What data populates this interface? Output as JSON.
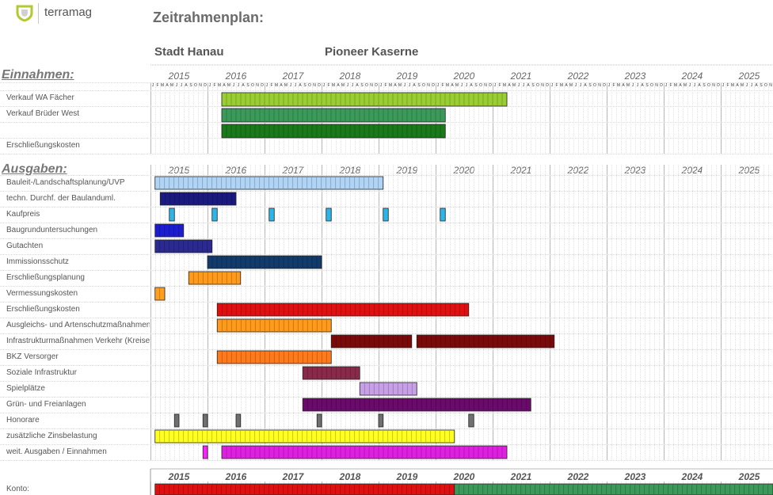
{
  "brand": {
    "name": "terramag"
  },
  "page": {
    "title": "Zeitrahmenplan:",
    "city": "Stadt Hanau",
    "project": "Pioneer Kaserne"
  },
  "timeline": {
    "years": [
      "2015",
      "2016",
      "2017",
      "2018",
      "2019",
      "2020",
      "2021",
      "2022",
      "2023",
      "2024",
      "2025"
    ],
    "month_initials": [
      "J",
      "F",
      "M",
      "A",
      "M",
      "J",
      "J",
      "A",
      "S",
      "O",
      "N",
      "D"
    ]
  },
  "sections": {
    "income_heading": "Einnahmen:",
    "expense_heading": "Ausgaben:",
    "account_label": "Konto:"
  },
  "income_rows": [
    {
      "label": "Verkauf WA Fächer",
      "bars": [
        {
          "start": 2016.25,
          "end": 2021.25,
          "color": "#9acd32"
        }
      ]
    },
    {
      "label": "Verkauf Brüder West",
      "bars": [
        {
          "start": 2016.25,
          "end": 2020.17,
          "color": "#3b9a5a"
        }
      ]
    },
    {
      "label": "",
      "bars": [
        {
          "start": 2016.25,
          "end": 2020.17,
          "color": "#1a7a1a"
        }
      ]
    },
    {
      "label": "Erschließungskosten",
      "bars": []
    }
  ],
  "expense_rows": [
    {
      "label": "Bauleit-/Landschaftsplanung/UVP",
      "bars": [
        {
          "start": 2015.08,
          "end": 2019.08,
          "color": "#b0d4f5"
        }
      ]
    },
    {
      "label": "techn. Durchf. der Baulanduml.",
      "bars": [
        {
          "start": 2015.17,
          "end": 2016.5,
          "color": "#1a1a80"
        }
      ]
    },
    {
      "label": "Kaufpreis",
      "bars": [
        {
          "start": 2015.33,
          "end": 2015.42,
          "color": "#2fb4e8"
        },
        {
          "start": 2016.08,
          "end": 2016.17,
          "color": "#2fb4e8"
        },
        {
          "start": 2017.08,
          "end": 2017.17,
          "color": "#2fb4e8"
        },
        {
          "start": 2018.08,
          "end": 2018.17,
          "color": "#2fb4e8"
        },
        {
          "start": 2019.08,
          "end": 2019.17,
          "color": "#2fb4e8"
        },
        {
          "start": 2020.08,
          "end": 2020.17,
          "color": "#2fb4e8"
        }
      ]
    },
    {
      "label": "Baugrunduntersuchungen",
      "bars": [
        {
          "start": 2015.08,
          "end": 2015.58,
          "color": "#1c1cd0"
        }
      ]
    },
    {
      "label": "Gutachten",
      "bars": [
        {
          "start": 2015.08,
          "end": 2016.08,
          "color": "#2a2a90"
        }
      ]
    },
    {
      "label": "Immissionsschutz",
      "bars": [
        {
          "start": 2016.0,
          "end": 2018.0,
          "color": "#123a6b"
        }
      ]
    },
    {
      "label": "Erschließungsplanung",
      "bars": [
        {
          "start": 2015.67,
          "end": 2016.58,
          "color": "#ff9a1a"
        }
      ]
    },
    {
      "label": "Vermessungskosten",
      "bars": [
        {
          "start": 2015.08,
          "end": 2015.25,
          "color": "#ffa020"
        }
      ]
    },
    {
      "label": "Erschließungskosten",
      "bars": [
        {
          "start": 2016.17,
          "end": 2020.58,
          "color": "#e01010"
        }
      ]
    },
    {
      "label": "Ausgleichs- und Artenschutzmaßnahmen",
      "bars": [
        {
          "start": 2016.17,
          "end": 2018.17,
          "color": "#ff9a1a"
        }
      ]
    },
    {
      "label": "Infrastrukturmaßnahmen Verkehr (Kreisel)",
      "bars": [
        {
          "start": 2018.17,
          "end": 2019.58,
          "color": "#7a0a0a"
        },
        {
          "start": 2019.67,
          "end": 2022.08,
          "color": "#7a0a0a"
        }
      ]
    },
    {
      "label": "BKZ Versorger",
      "bars": [
        {
          "start": 2016.17,
          "end": 2018.17,
          "color": "#ff7a1a"
        }
      ]
    },
    {
      "label": "Soziale Infrastruktur",
      "bars": [
        {
          "start": 2017.67,
          "end": 2018.67,
          "color": "#8a2a4a"
        }
      ]
    },
    {
      "label": "Spielplätze",
      "bars": [
        {
          "start": 2018.67,
          "end": 2019.67,
          "color": "#c8a0e8"
        }
      ]
    },
    {
      "label": "Grün- und Freianlagen",
      "bars": [
        {
          "start": 2017.67,
          "end": 2021.67,
          "color": "#6a0a6a"
        }
      ]
    },
    {
      "label": "Honorare",
      "bars": [
        {
          "start": 2015.42,
          "end": 2015.5,
          "color": "#707070"
        },
        {
          "start": 2015.92,
          "end": 2016.0,
          "color": "#707070"
        },
        {
          "start": 2016.5,
          "end": 2016.58,
          "color": "#707070"
        },
        {
          "start": 2017.92,
          "end": 2018.0,
          "color": "#707070"
        },
        {
          "start": 2019.0,
          "end": 2019.08,
          "color": "#707070"
        },
        {
          "start": 2020.58,
          "end": 2020.67,
          "color": "#707070"
        }
      ]
    },
    {
      "label": "zusätzliche Zinsbelastung",
      "bars": [
        {
          "start": 2015.08,
          "end": 2020.33,
          "color": "#ffff20"
        }
      ]
    },
    {
      "label": "weit. Ausgaben / Einnahmen",
      "bars": [
        {
          "start": 2015.92,
          "end": 2016.0,
          "color": "#ff20ff"
        },
        {
          "start": 2016.25,
          "end": 2021.25,
          "color": "#e020e0"
        }
      ]
    }
  ],
  "account_row": {
    "bars": [
      {
        "start": 2015.08,
        "end": 2020.33,
        "color": "#e01010"
      },
      {
        "start": 2020.33,
        "end": 2026.0,
        "color": "#3b9a5a"
      }
    ]
  }
}
